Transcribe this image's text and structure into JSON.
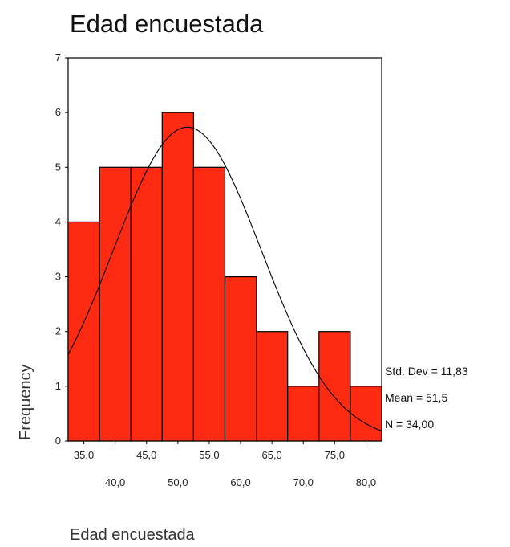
{
  "chart_data": {
    "type": "bar",
    "title": "Edad encuestada",
    "xlabel": "Edad encuestada",
    "ylabel": "Frequency",
    "xlim": [
      32.5,
      82.5
    ],
    "ylim": [
      0,
      7
    ],
    "y_ticks": [
      0,
      1,
      2,
      3,
      4,
      5,
      6,
      7
    ],
    "x_ticks_upper": [
      "35,0",
      "45,0",
      "55,0",
      "65,0",
      "75,0"
    ],
    "x_ticks_lower": [
      "40,0",
      "50,0",
      "60,0",
      "70,0",
      "80,0"
    ],
    "bin_centers": [
      35,
      40,
      45,
      50,
      55,
      60,
      65,
      70,
      75,
      80
    ],
    "values": [
      4,
      5,
      5,
      6,
      5,
      3,
      2,
      1,
      2,
      1
    ],
    "bar_color": "#ff2a12",
    "normal_curve": {
      "mean": 51.5,
      "std_dev": 11.83,
      "n": 34
    },
    "stats_text": {
      "std_dev": "Std. Dev = 11,83",
      "mean": "Mean = 51,5",
      "n": "N = 34,00"
    }
  }
}
